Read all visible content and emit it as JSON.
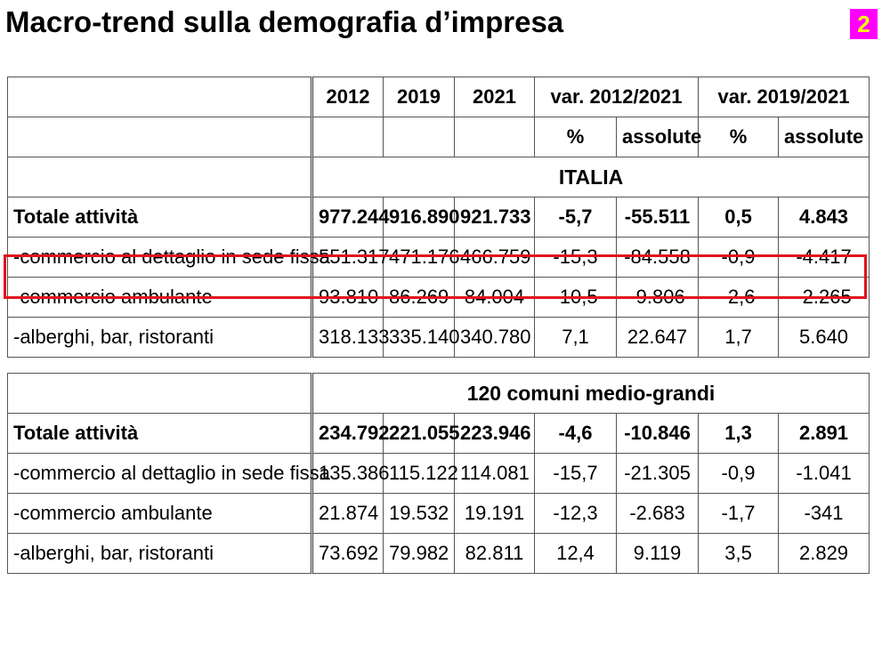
{
  "title": "Macro-trend sulla demografia d’impresa",
  "page_badge": "2",
  "header": {
    "years": [
      "2012",
      "2019",
      "2021"
    ],
    "var1_label": "var. 2012/2021",
    "var2_label": "var. 2019/2021",
    "pct": "%",
    "abs": "assolute"
  },
  "sections": [
    {
      "name": "ITALIA",
      "rows": [
        {
          "label": "Totale attività",
          "v2012": "977.244",
          "v2019": "916.890",
          "v2021": "921.733",
          "p1": "-5,7",
          "a1": "-55.511",
          "p2": "0,5",
          "a2": "4.843"
        },
        {
          "label": "-commercio al dettaglio in sede  fissa",
          "v2012": "551.317",
          "v2019": "471.176",
          "v2021": "466.759",
          "p1": "-15,3",
          "a1": "-84.558",
          "p2": "-0,9",
          "a2": "-4.417"
        },
        {
          "label": "-commercio ambulante",
          "v2012": "93.810",
          "v2019": "86.269",
          "v2021": "84.004",
          "p1": "-10,5",
          "a1": "-9.806",
          "p2": "-2,6",
          "a2": "-2.265"
        },
        {
          "label": "-alberghi, bar, ristoranti",
          "v2012": "318.133",
          "v2019": "335.140",
          "v2021": "340.780",
          "p1": "7,1",
          "a1": "22.647",
          "p2": "1,7",
          "a2": "5.640"
        }
      ]
    },
    {
      "name": "120 comuni medio-grandi",
      "rows": [
        {
          "label": "Totale attività",
          "v2012": "234.792",
          "v2019": "221.055",
          "v2021": "223.946",
          "p1": "-4,6",
          "a1": "-10.846",
          "p2": "1,3",
          "a2": "2.891"
        },
        {
          "label": "-commercio al dettaglio in sede  fissa",
          "v2012": "135.386",
          "v2019": "115.122",
          "v2021": "114.081",
          "p1": "-15,7",
          "a1": "-21.305",
          "p2": "-0,9",
          "a2": "-1.041"
        },
        {
          "label": "-commercio ambulante",
          "v2012": "21.874",
          "v2019": "19.532",
          "v2021": "19.191",
          "p1": "-12,3",
          "a1": "-2.683",
          "p2": "-1,7",
          "a2": "-341"
        },
        {
          "label": "-alberghi, bar, ristoranti",
          "v2012": "73.692",
          "v2019": "79.982",
          "v2021": "82.811",
          "p1": "12,4",
          "a1": "9.119",
          "p2": "3,5",
          "a2": "2.829"
        }
      ]
    }
  ],
  "colors": {
    "badge_bg": "#ff00ff",
    "badge_fg": "#ffff00",
    "highlight": "#e0141e"
  }
}
